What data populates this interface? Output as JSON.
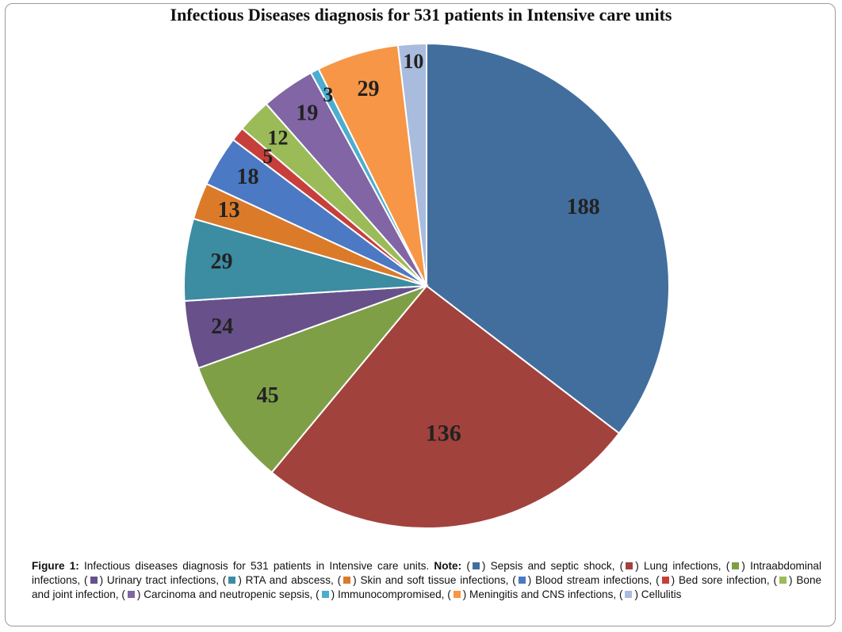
{
  "chart_data": {
    "type": "pie",
    "title": "Infectious Diseases diagnosis for 531 patients in Intensive care units",
    "slices": [
      {
        "name": "Sepsis and septic shock",
        "value": 188,
        "color": "#426e9e"
      },
      {
        "name": "Lung infections",
        "value": 136,
        "color": "#a2423d"
      },
      {
        "name": "Intraabdominal infections",
        "value": 45,
        "color": "#7f9f47"
      },
      {
        "name": "Urinary tract infections",
        "value": 24,
        "color": "#68518a"
      },
      {
        "name": "RTA and abscess",
        "value": 29,
        "color": "#3c8ca2"
      },
      {
        "name": "Skin and soft tissue infections",
        "value": 13,
        "color": "#db7b2a"
      },
      {
        "name": "Blood stream infections",
        "value": 18,
        "color": "#4b79c4"
      },
      {
        "name": "Bed sore infection",
        "value": 5,
        "color": "#c73f3b"
      },
      {
        "name": "Bone and joint infection",
        "value": 12,
        "color": "#9bbb58"
      },
      {
        "name": "Carcinoma and neutropenic sepsis",
        "value": 19,
        "color": "#8165a5"
      },
      {
        "name": "Immunocompromised",
        "value": 3,
        "color": "#4cadd0"
      },
      {
        "name": "Meningitis and CNS infections",
        "value": 29,
        "color": "#f79646"
      },
      {
        "name": "Cellulitis",
        "value": 10,
        "color": "#a9bcdd"
      }
    ]
  },
  "caption": {
    "label": "Figure 1:",
    "text": "Infectious diseases diagnosis for 531 patients in Intensive care units.",
    "note_label": "Note:",
    "legend": [
      {
        "text": "Sepsis and septic shock,",
        "color": "#426e9e"
      },
      {
        "text": "Lung infections,",
        "color": "#a2423d"
      },
      {
        "text": "Intraabdominal infections,",
        "color": "#7f9f47"
      },
      {
        "text": "Urinary tract infections,",
        "color": "#68518a"
      },
      {
        "text": "RTA and abscess,",
        "color": "#3c8ca2"
      },
      {
        "text": "Skin and soft tissue infections,",
        "color": "#db7b2a"
      },
      {
        "text": "Blood stream infections,",
        "color": "#4b79c4"
      },
      {
        "text": "Bed sore infection,",
        "color": "#c73f3b"
      },
      {
        "text": "Bone and joint infection,",
        "color": "#9bbb58"
      },
      {
        "text": "Carcinoma and neutropenic sepsis,",
        "color": "#8165a5"
      },
      {
        "text": "Immunocompromised,",
        "color": "#4cadd0"
      },
      {
        "text": "Meningitis and CNS infections,",
        "color": "#f79646"
      },
      {
        "text": "Cellulitis",
        "color": "#a9bcdd"
      }
    ]
  }
}
